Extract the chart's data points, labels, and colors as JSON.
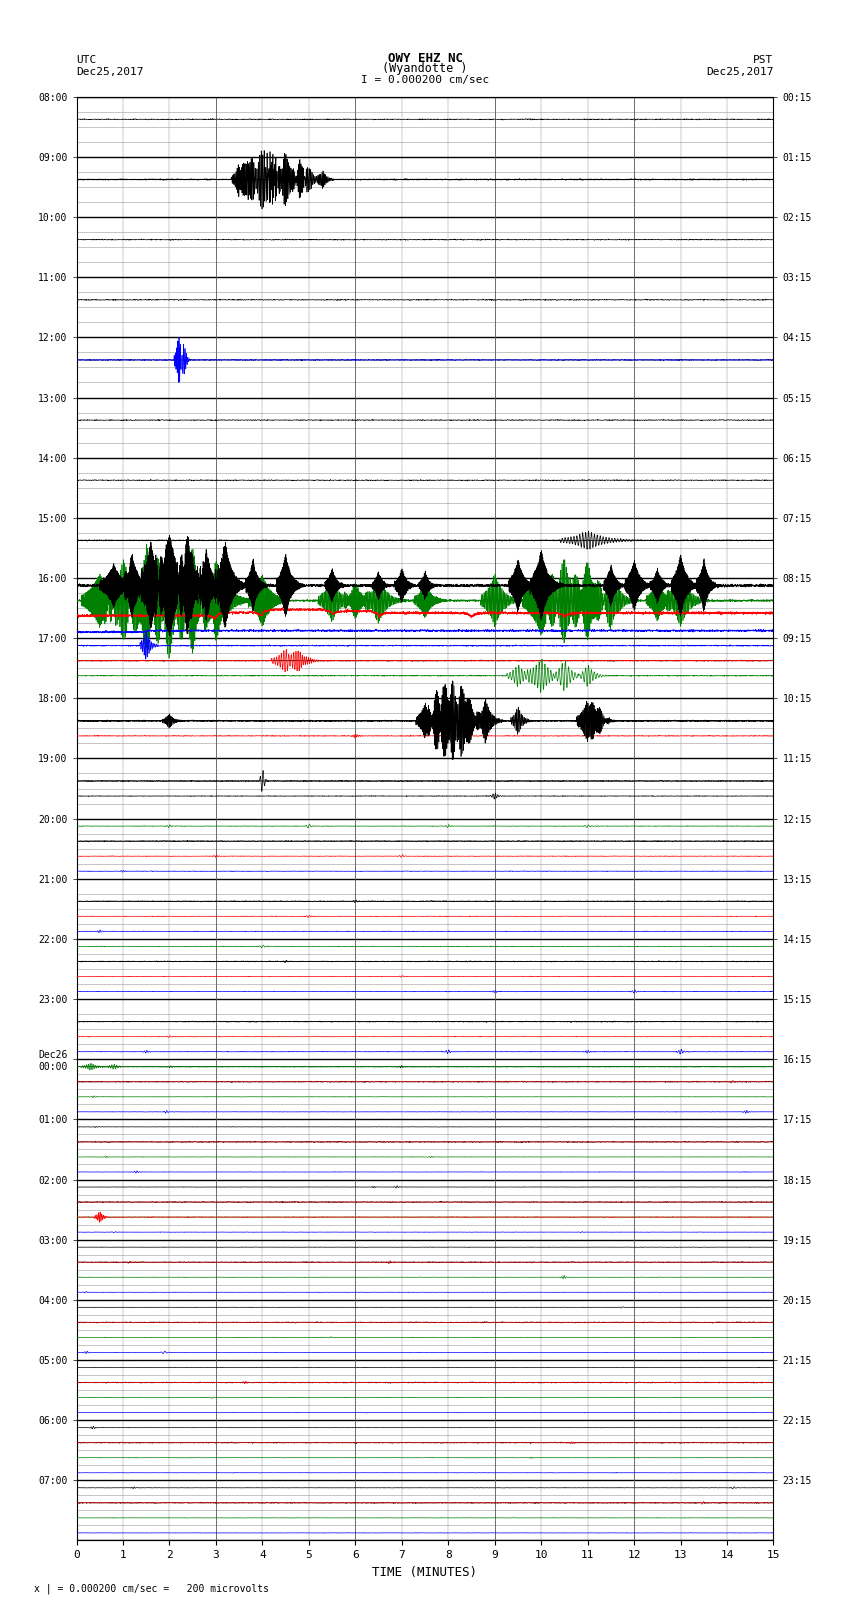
{
  "title_line1": "OWY EHZ NC",
  "title_line2": "(Wyandotte )",
  "scale_label": "I = 0.000200 cm/sec",
  "footer_label": "x | = 0.000200 cm/sec =   200 microvolts",
  "utc_label": "UTC\nDec25,2017",
  "pst_label": "PST\nDec25,2017",
  "xlabel": "TIME (MINUTES)",
  "left_times": [
    "08:00",
    "09:00",
    "10:00",
    "11:00",
    "12:00",
    "13:00",
    "14:00",
    "15:00",
    "16:00",
    "17:00",
    "18:00",
    "19:00",
    "20:00",
    "21:00",
    "22:00",
    "23:00",
    "Dec26\n00:00",
    "01:00",
    "02:00",
    "03:00",
    "04:00",
    "05:00",
    "06:00",
    "07:00"
  ],
  "right_times": [
    "00:15",
    "01:15",
    "02:15",
    "03:15",
    "04:15",
    "05:15",
    "06:15",
    "07:15",
    "08:15",
    "09:15",
    "10:15",
    "11:15",
    "12:15",
    "13:15",
    "14:15",
    "15:15",
    "16:15",
    "17:15",
    "18:15",
    "19:15",
    "20:15",
    "21:15",
    "22:15",
    "23:15"
  ],
  "bg_color": "#ffffff",
  "major_grid_color": "#000000",
  "minor_grid_color": "#aaaaaa",
  "num_rows": 24,
  "subrows": 4,
  "xmin": 0,
  "xmax": 15
}
